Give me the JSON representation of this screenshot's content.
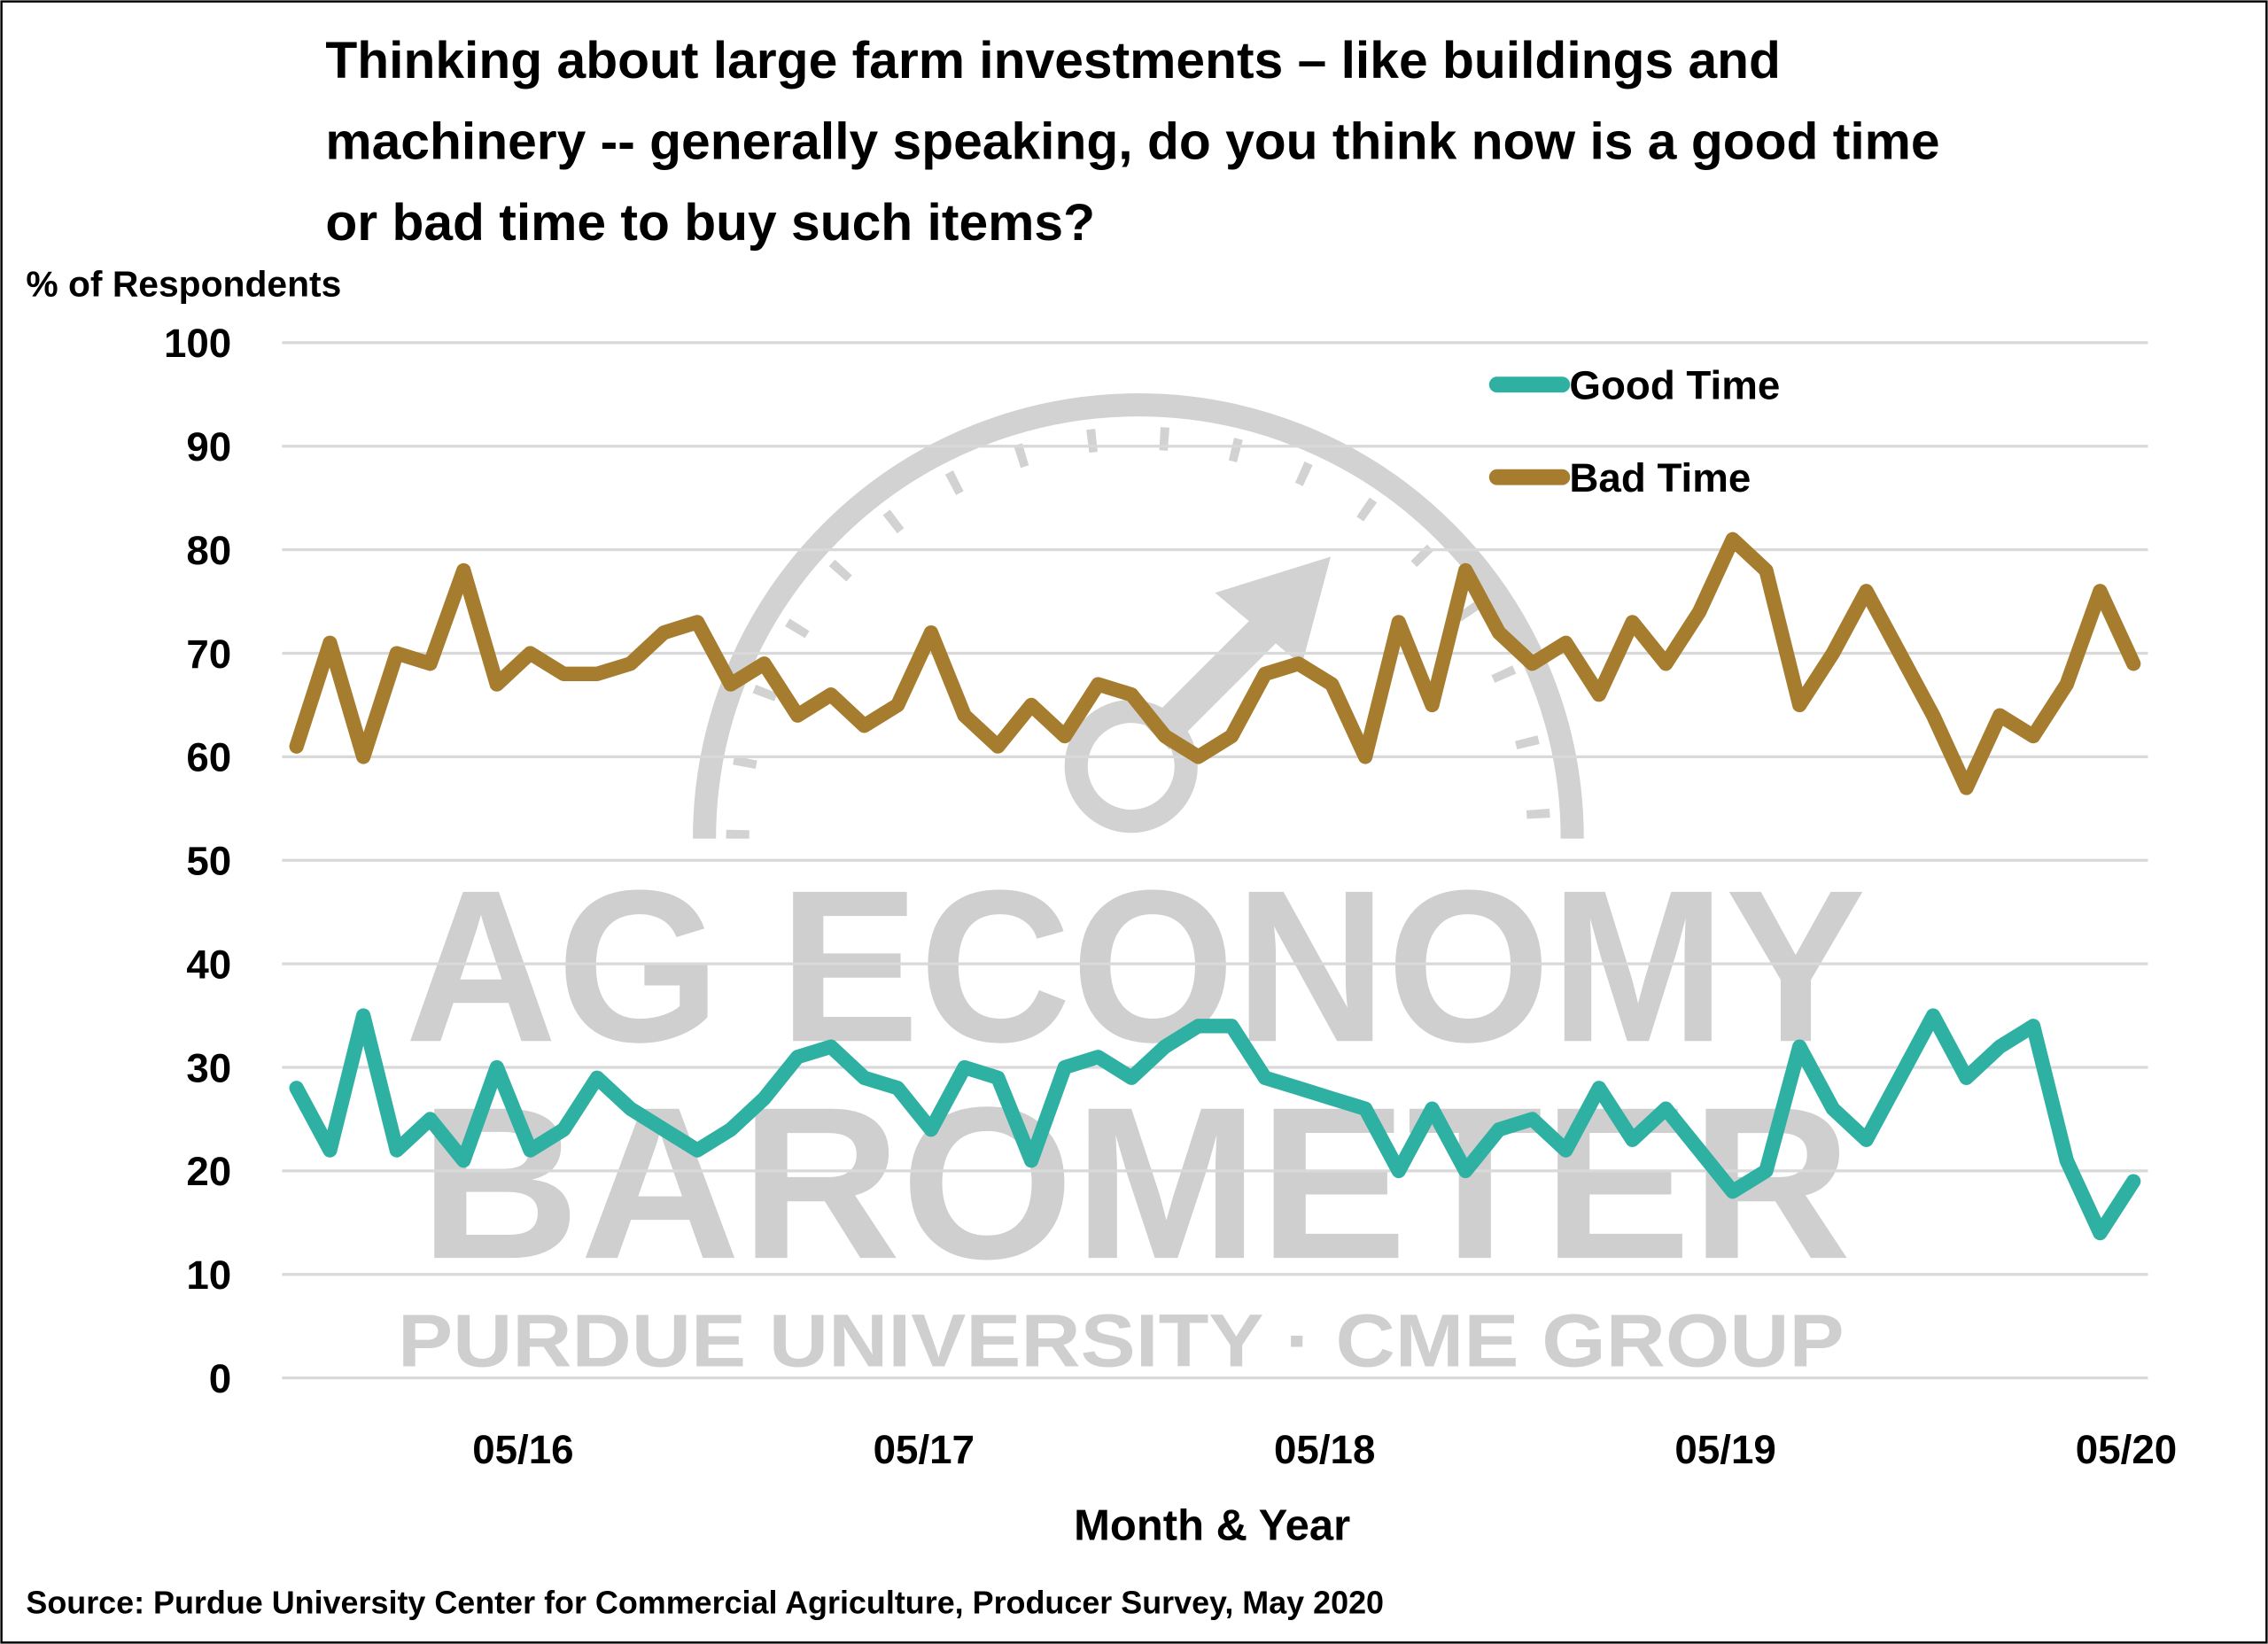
{
  "chart_data": {
    "type": "line",
    "title": "Thinking about large farm investments – like buildings and machinery -- generally speaking, do you think now is a good time or bad time to buy such items?",
    "title_lines": [
      "Thinking about large farm investments – like buildings and",
      "machinery -- generally speaking, do you think now is a good time",
      "or bad time to buy such items?"
    ],
    "ylabel": "% of Respondents",
    "xlabel": "Month & Year",
    "ylim": [
      0,
      100
    ],
    "yticks": [
      "0",
      "10",
      "20",
      "30",
      "40",
      "50",
      "60",
      "70",
      "80",
      "90",
      "100"
    ],
    "x_start": "10/15",
    "x_end": "05/20",
    "x_frequency": "monthly",
    "xtick_labels": [
      "05/16",
      "05/17",
      "05/18",
      "05/19",
      "05/20"
    ],
    "grid": true,
    "legend_placement": "top-right",
    "series": [
      {
        "name": "Good Time",
        "color": "#2eb0a3",
        "values": [
          28,
          22,
          35,
          22,
          25,
          21,
          30,
          22,
          24,
          29,
          26,
          24,
          22,
          24,
          27,
          31,
          32,
          29,
          28,
          24,
          30,
          29,
          21,
          30,
          31,
          29,
          32,
          34,
          34,
          29,
          28,
          27,
          26,
          20,
          26,
          20,
          24,
          25,
          22,
          28,
          23,
          26,
          22,
          18,
          20,
          32,
          26,
          23,
          29,
          35,
          29,
          32,
          34,
          21,
          14,
          19
        ]
      },
      {
        "name": "Bad Time",
        "color": "#a67c2e",
        "values": [
          61,
          71,
          60,
          70,
          69,
          78,
          67,
          70,
          68,
          68,
          69,
          72,
          73,
          67,
          69,
          64,
          66,
          63,
          65,
          72,
          64,
          61,
          65,
          62,
          67,
          66,
          62,
          60,
          62,
          68,
          69,
          67,
          60,
          73,
          65,
          78,
          72,
          69,
          71,
          66,
          73,
          69,
          74,
          81,
          78,
          65,
          70,
          76,
          70,
          64,
          57,
          64,
          62,
          67,
          76,
          69
        ]
      }
    ],
    "source": "Source: Purdue University Center for Commercial Agriculture, Producer Survey, May 2020"
  },
  "watermark": {
    "line1": "AG ECONOMY",
    "line2": "BAROMETER",
    "line3": "PURDUE UNIVERSITY  ·  CME GROUP",
    "icon": "gauge-icon"
  }
}
